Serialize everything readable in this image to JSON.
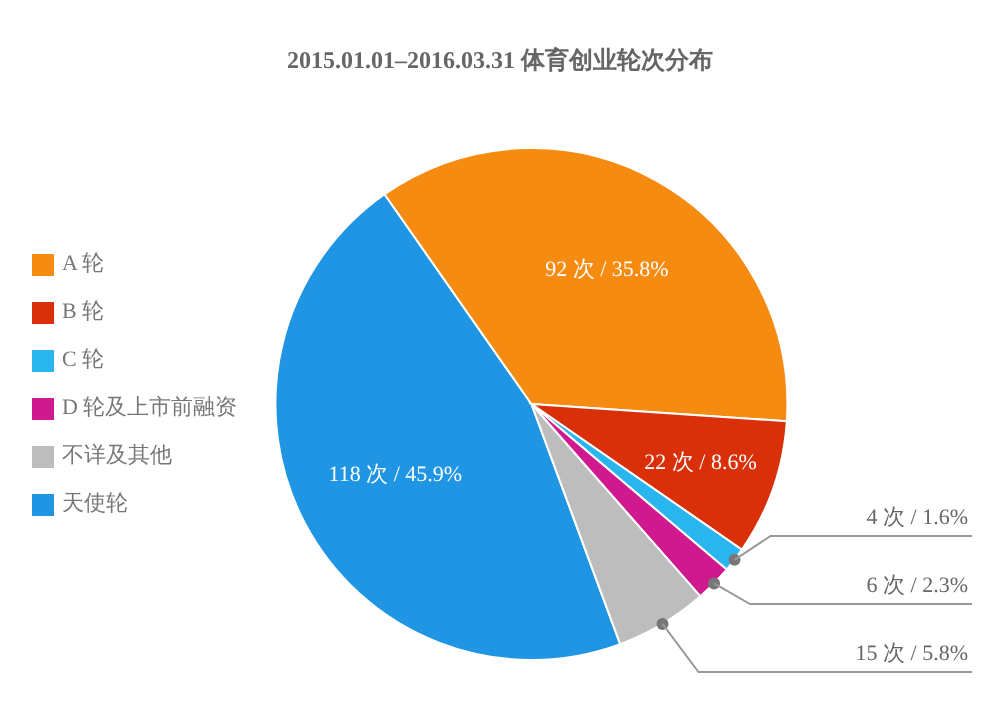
{
  "chart_data": {
    "type": "pie",
    "title": "2015.01.01–2016.03.31 体育创业轮次分布",
    "categories": [
      "天使轮",
      "A 轮",
      "B 轮",
      "C 轮",
      "D 轮及上市前融资",
      "不详及其他"
    ],
    "values": [
      118,
      92,
      22,
      4,
      6,
      15
    ],
    "colors": [
      "#1f95e3",
      "#f68b12",
      "#d9300a",
      "#29b6ef",
      "#d0188f",
      "#bdbdbd"
    ],
    "value_labels": [
      "118 次 / 45.9%",
      "92 次 / 35.8%",
      "22 次 / 8.6%",
      "4 次 / 1.6%",
      "6 次 / 2.3%",
      "15 次 / 5.8%"
    ],
    "legend": "left"
  }
}
